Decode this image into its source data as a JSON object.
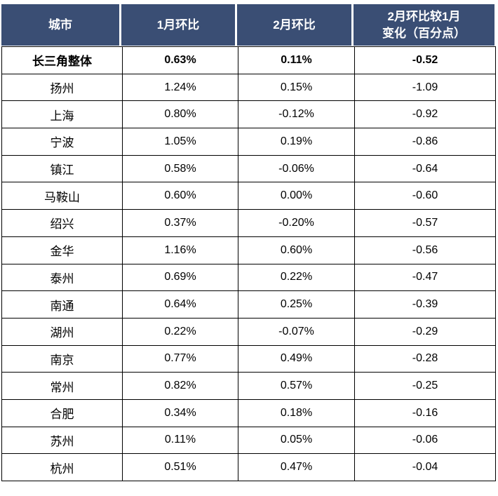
{
  "header": {
    "col1": "城市",
    "col2": "1月环比",
    "col3": "2月环比",
    "col4_line1": "2月环比较1月",
    "col4_line2": "变化（百分点）"
  },
  "colors": {
    "header_bg": "#3A4E74",
    "header_text": "#FFFFFF",
    "body_text": "#000000",
    "grid_border": "#000000"
  },
  "chart_data": {
    "type": "table",
    "columns": [
      "城市",
      "1月环比",
      "2月环比",
      "2月环比较1月变化（百分点）"
    ],
    "emphasized_row": "长三角整体",
    "rows": [
      [
        "长三角整体",
        "0.63%",
        "0.11%",
        "-0.52"
      ],
      [
        "扬州",
        "1.24%",
        "0.15%",
        "-1.09"
      ],
      [
        "上海",
        "0.80%",
        "-0.12%",
        "-0.92"
      ],
      [
        "宁波",
        "1.05%",
        "0.19%",
        "-0.86"
      ],
      [
        "镇江",
        "0.58%",
        "-0.06%",
        "-0.64"
      ],
      [
        "马鞍山",
        "0.60%",
        "0.00%",
        "-0.60"
      ],
      [
        "绍兴",
        "0.37%",
        "-0.20%",
        "-0.57"
      ],
      [
        "金华",
        "1.16%",
        "0.60%",
        "-0.56"
      ],
      [
        "泰州",
        "0.69%",
        "0.22%",
        "-0.47"
      ],
      [
        "南通",
        "0.64%",
        "0.25%",
        "-0.39"
      ],
      [
        "湖州",
        "0.22%",
        "-0.07%",
        "-0.29"
      ],
      [
        "南京",
        "0.77%",
        "0.49%",
        "-0.28"
      ],
      [
        "常州",
        "0.82%",
        "0.57%",
        "-0.25"
      ],
      [
        "合肥",
        "0.34%",
        "0.18%",
        "-0.16"
      ],
      [
        "苏州",
        "0.11%",
        "0.05%",
        "-0.06"
      ],
      [
        "杭州",
        "0.51%",
        "0.47%",
        "-0.04"
      ]
    ]
  }
}
